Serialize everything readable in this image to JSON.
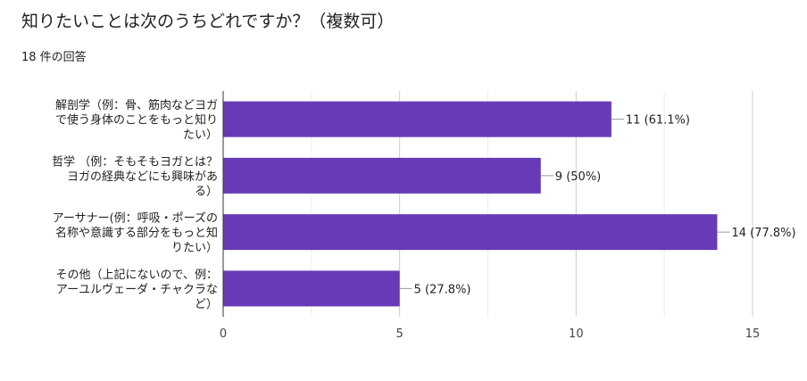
{
  "question": {
    "title": "知りたいことは次のうちどれですか？（複数可）",
    "response_count": "18 件の回答"
  },
  "chart_data": {
    "type": "bar",
    "orientation": "horizontal",
    "categories": [
      [
        "解剖学（例：骨、筋肉などヨガ",
        "で使う身体のことをもっと知り",
        "たい）"
      ],
      [
        "哲学 （例：そもそもヨガとは？",
        "ヨガの経典などにも興味があ",
        "る）"
      ],
      [
        "アーサナー(例：呼吸・ポーズの",
        "名称や意識する部分をもっと知",
        "りたい）"
      ],
      [
        "その他（上記にないので、例：",
        "アーユルヴェーダ・チャクラな",
        "ど）"
      ]
    ],
    "values": [
      11,
      9,
      14,
      5
    ],
    "data_labels": [
      "11 (61.1%)",
      "9 (50%)",
      "14 (77.8%)",
      "5 (27.8%)"
    ],
    "x_ticks": [
      0,
      5,
      10,
      15
    ],
    "xlim": [
      0,
      15
    ],
    "bar_color": "#673ab7",
    "grid": true
  }
}
